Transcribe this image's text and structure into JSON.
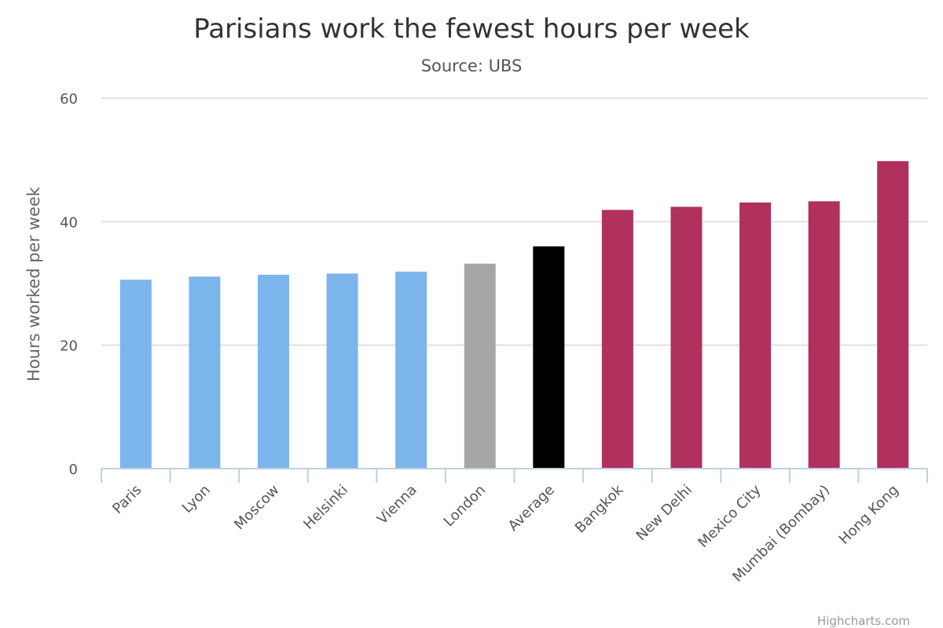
{
  "chart_data": {
    "type": "bar",
    "title": "Parisians work the fewest hours per week",
    "subtitle": "Source: UBS",
    "ylabel": "Hours worked per week",
    "xlabel": "",
    "ylim": [
      0,
      60
    ],
    "yticks": [
      0,
      20,
      40,
      60
    ],
    "grid": true,
    "legend": "none",
    "categories": [
      "Paris",
      "Lyon",
      "Moscow",
      "Helsinki",
      "Vienna",
      "London",
      "Average",
      "Bangkok",
      "New Delhi",
      "Mexico City",
      "Mumbai (Bombay)",
      "Hong Kong"
    ],
    "values": [
      30.6,
      31.1,
      31.4,
      31.6,
      31.9,
      33.2,
      36,
      41.9,
      42.4,
      43.1,
      43.3,
      49.8
    ],
    "colors": [
      "#7cb5ec",
      "#7cb5ec",
      "#7cb5ec",
      "#7cb5ec",
      "#7cb5ec",
      "#a6a6a6",
      "#000000",
      "#b0305e",
      "#b0305e",
      "#b0305e",
      "#b0305e",
      "#b0305e"
    ]
  },
  "credits": "Highcharts.com"
}
